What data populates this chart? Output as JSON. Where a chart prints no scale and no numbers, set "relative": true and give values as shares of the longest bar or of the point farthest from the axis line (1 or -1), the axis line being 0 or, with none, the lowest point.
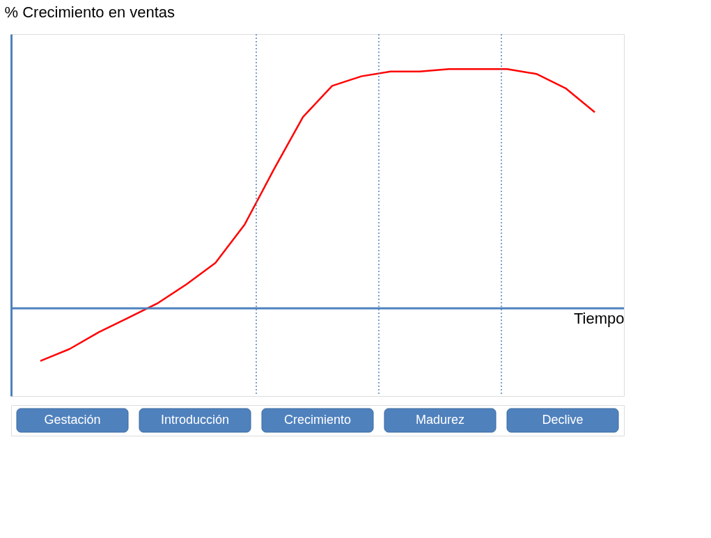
{
  "chart_data": {
    "type": "line",
    "relative": true,
    "xlabel": "Tiempo",
    "ylabel": "% Crecimiento en ventas",
    "categories": [
      null,
      null,
      null,
      null,
      null,
      null,
      null,
      null,
      null,
      null,
      null,
      null,
      null,
      null,
      null,
      null,
      null,
      null,
      null,
      null
    ],
    "series": [
      {
        "color": "#ff0000",
        "values": [
          -0.22,
          -0.17,
          -0.1,
          -0.04,
          0.02,
          0.1,
          0.19,
          0.35,
          0.58,
          0.8,
          0.93,
          0.97,
          0.99,
          0.99,
          1.0,
          1.0,
          1.0,
          0.98,
          0.92,
          0.82
        ]
      }
    ],
    "ref_lines": [
      {
        "axis": "y",
        "value": 0,
        "color": "#4f81bd",
        "line_style": "solid"
      }
    ],
    "annotations": [
      "Gestación",
      "Introducción",
      "Crecimiento",
      "Madurez",
      "Declive"
    ]
  }
}
